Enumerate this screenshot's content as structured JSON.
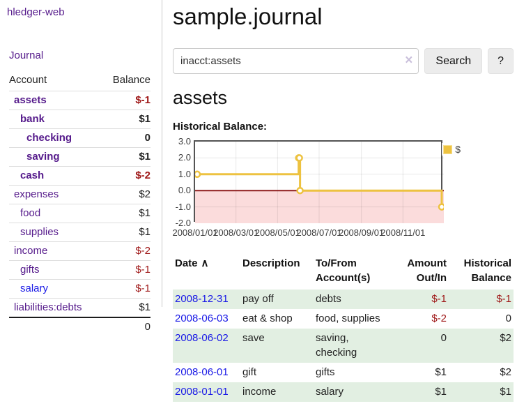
{
  "colors": {
    "link_purple": "#551a8b",
    "link_blue": "#1919e6",
    "negative_red": "#9e1616",
    "row_highlight_green": "#e2efe2",
    "chart_series_gold": "#edc240",
    "chart_negative_fill": "#fbdcdc",
    "chart_zero_line": "#8e1b1b"
  },
  "sidebar": {
    "app_title": "hledger-web",
    "nav_journal": "Journal",
    "accounts": {
      "account_header": "Account",
      "balance_header": "Balance",
      "rows": [
        {
          "name": "assets",
          "balance": "$-1",
          "level": 1,
          "in_account": true,
          "negative": true
        },
        {
          "name": "bank",
          "balance": "$1",
          "level": 2,
          "in_account": true
        },
        {
          "name": "checking",
          "balance": "0",
          "level": 3,
          "in_account": true
        },
        {
          "name": "saving",
          "balance": "$1",
          "level": 3,
          "in_account": true
        },
        {
          "name": "cash",
          "balance": "$-2",
          "level": 2,
          "in_account": true,
          "negative": true
        },
        {
          "name": "expenses",
          "balance": "$2",
          "level": 1
        },
        {
          "name": "food",
          "balance": "$1",
          "level": 2
        },
        {
          "name": "supplies",
          "balance": "$1",
          "level": 2
        },
        {
          "name": "income",
          "balance": "$-2",
          "level": 1,
          "negative": true
        },
        {
          "name": "gifts",
          "balance": "$-1",
          "level": 2,
          "negative": true
        },
        {
          "name": "salary",
          "balance": "$-1",
          "level": 2,
          "negative": true,
          "unvisited": true
        },
        {
          "name": "liabilities:debts",
          "balance": "$1",
          "level": 1
        }
      ],
      "total": "0"
    }
  },
  "main": {
    "title": "sample.journal",
    "search": {
      "value": "inacct:assets",
      "clear_icon": "×",
      "button_label": "Search",
      "help_label": "?"
    },
    "account_heading": "assets",
    "section_label": "Historical Balance:"
  },
  "chart_data": {
    "type": "line",
    "title": "Historical Balance",
    "steps": true,
    "series": [
      {
        "name": "$",
        "color": "#edc240",
        "points": [
          [
            "2008-01-01",
            1
          ],
          [
            "2008-06-01",
            2
          ],
          [
            "2008-06-02",
            2
          ],
          [
            "2008-06-03",
            0
          ],
          [
            "2008-12-31",
            -1
          ]
        ]
      }
    ],
    "x_range": [
      "2008-01-01",
      "2008-12-31"
    ],
    "ylim": [
      -2,
      3
    ],
    "y_ticks": [
      "3.0",
      "2.0",
      "1.0",
      "0.0",
      "-1.0",
      "-2.0"
    ],
    "x_ticks": [
      "2008/01/01",
      "2008/03/01",
      "2008/05/01",
      "2008/07/01",
      "2008/09/01",
      "2008/11/01"
    ],
    "legend": {
      "label": "$",
      "position": "top-right"
    },
    "negative_region": {
      "from": 0,
      "to": -2,
      "fill": "#fbdcdc",
      "line": "#8e1b1b"
    },
    "grid": true
  },
  "transactions": {
    "headers": {
      "date": "Date",
      "sort_icon": "∧",
      "description": "Description",
      "accounts": "To/From Account(s)",
      "amount": "Amount Out/In",
      "balance": "Historical Balance"
    },
    "rows": [
      {
        "date": "2008-12-31",
        "description": "pay off",
        "accounts": "debts",
        "amount": "$-1",
        "balance": "$-1",
        "amount_negative": true,
        "balance_negative": true,
        "highlight": true
      },
      {
        "date": "2008-06-03",
        "description": "eat & shop",
        "accounts": "food, supplies",
        "amount": "$-2",
        "balance": "0",
        "amount_negative": true
      },
      {
        "date": "2008-06-02",
        "description": "save",
        "accounts": "saving, checking",
        "amount": "0",
        "balance": "$2",
        "highlight": true
      },
      {
        "date": "2008-06-01",
        "description": "gift",
        "accounts": "gifts",
        "amount": "$1",
        "balance": "$2"
      },
      {
        "date": "2008-01-01",
        "description": "income",
        "accounts": "salary",
        "amount": "$1",
        "balance": "$1",
        "highlight": true
      }
    ]
  }
}
